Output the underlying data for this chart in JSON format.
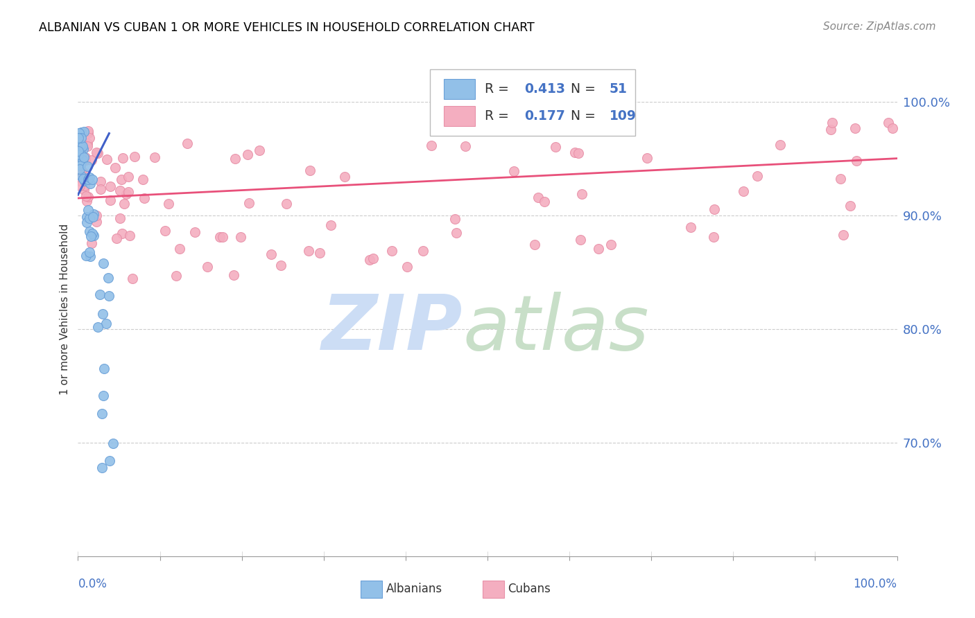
{
  "title": "ALBANIAN VS CUBAN 1 OR MORE VEHICLES IN HOUSEHOLD CORRELATION CHART",
  "source": "Source: ZipAtlas.com",
  "ylabel": "1 or more Vehicles in Household",
  "legend_albanian": "Albanians",
  "legend_cuban": "Cubans",
  "R_albanian": 0.413,
  "N_albanian": 51,
  "R_cuban": 0.177,
  "N_cuban": 109,
  "albanian_color": "#92c0e8",
  "albanian_edge_color": "#6aa0d8",
  "cuban_color": "#f4aec0",
  "cuban_edge_color": "#e890a8",
  "albanian_line_color": "#4060c8",
  "cuban_line_color": "#e8507a",
  "ytick_labels": [
    "70.0%",
    "80.0%",
    "90.0%",
    "100.0%"
  ],
  "ytick_values": [
    0.7,
    0.8,
    0.9,
    1.0
  ],
  "xmin": 0.0,
  "xmax": 1.0,
  "ymin": 0.6,
  "ymax": 1.035,
  "albanian_trend_x": [
    0.0,
    0.038
  ],
  "albanian_trend_y": [
    0.918,
    0.972
  ],
  "cuban_trend_x": [
    0.0,
    1.0
  ],
  "cuban_trend_y": [
    0.915,
    0.95
  ],
  "watermark_zip_color": "#ccddf5",
  "watermark_atlas_color": "#c8dfc8",
  "marker_size": 100
}
